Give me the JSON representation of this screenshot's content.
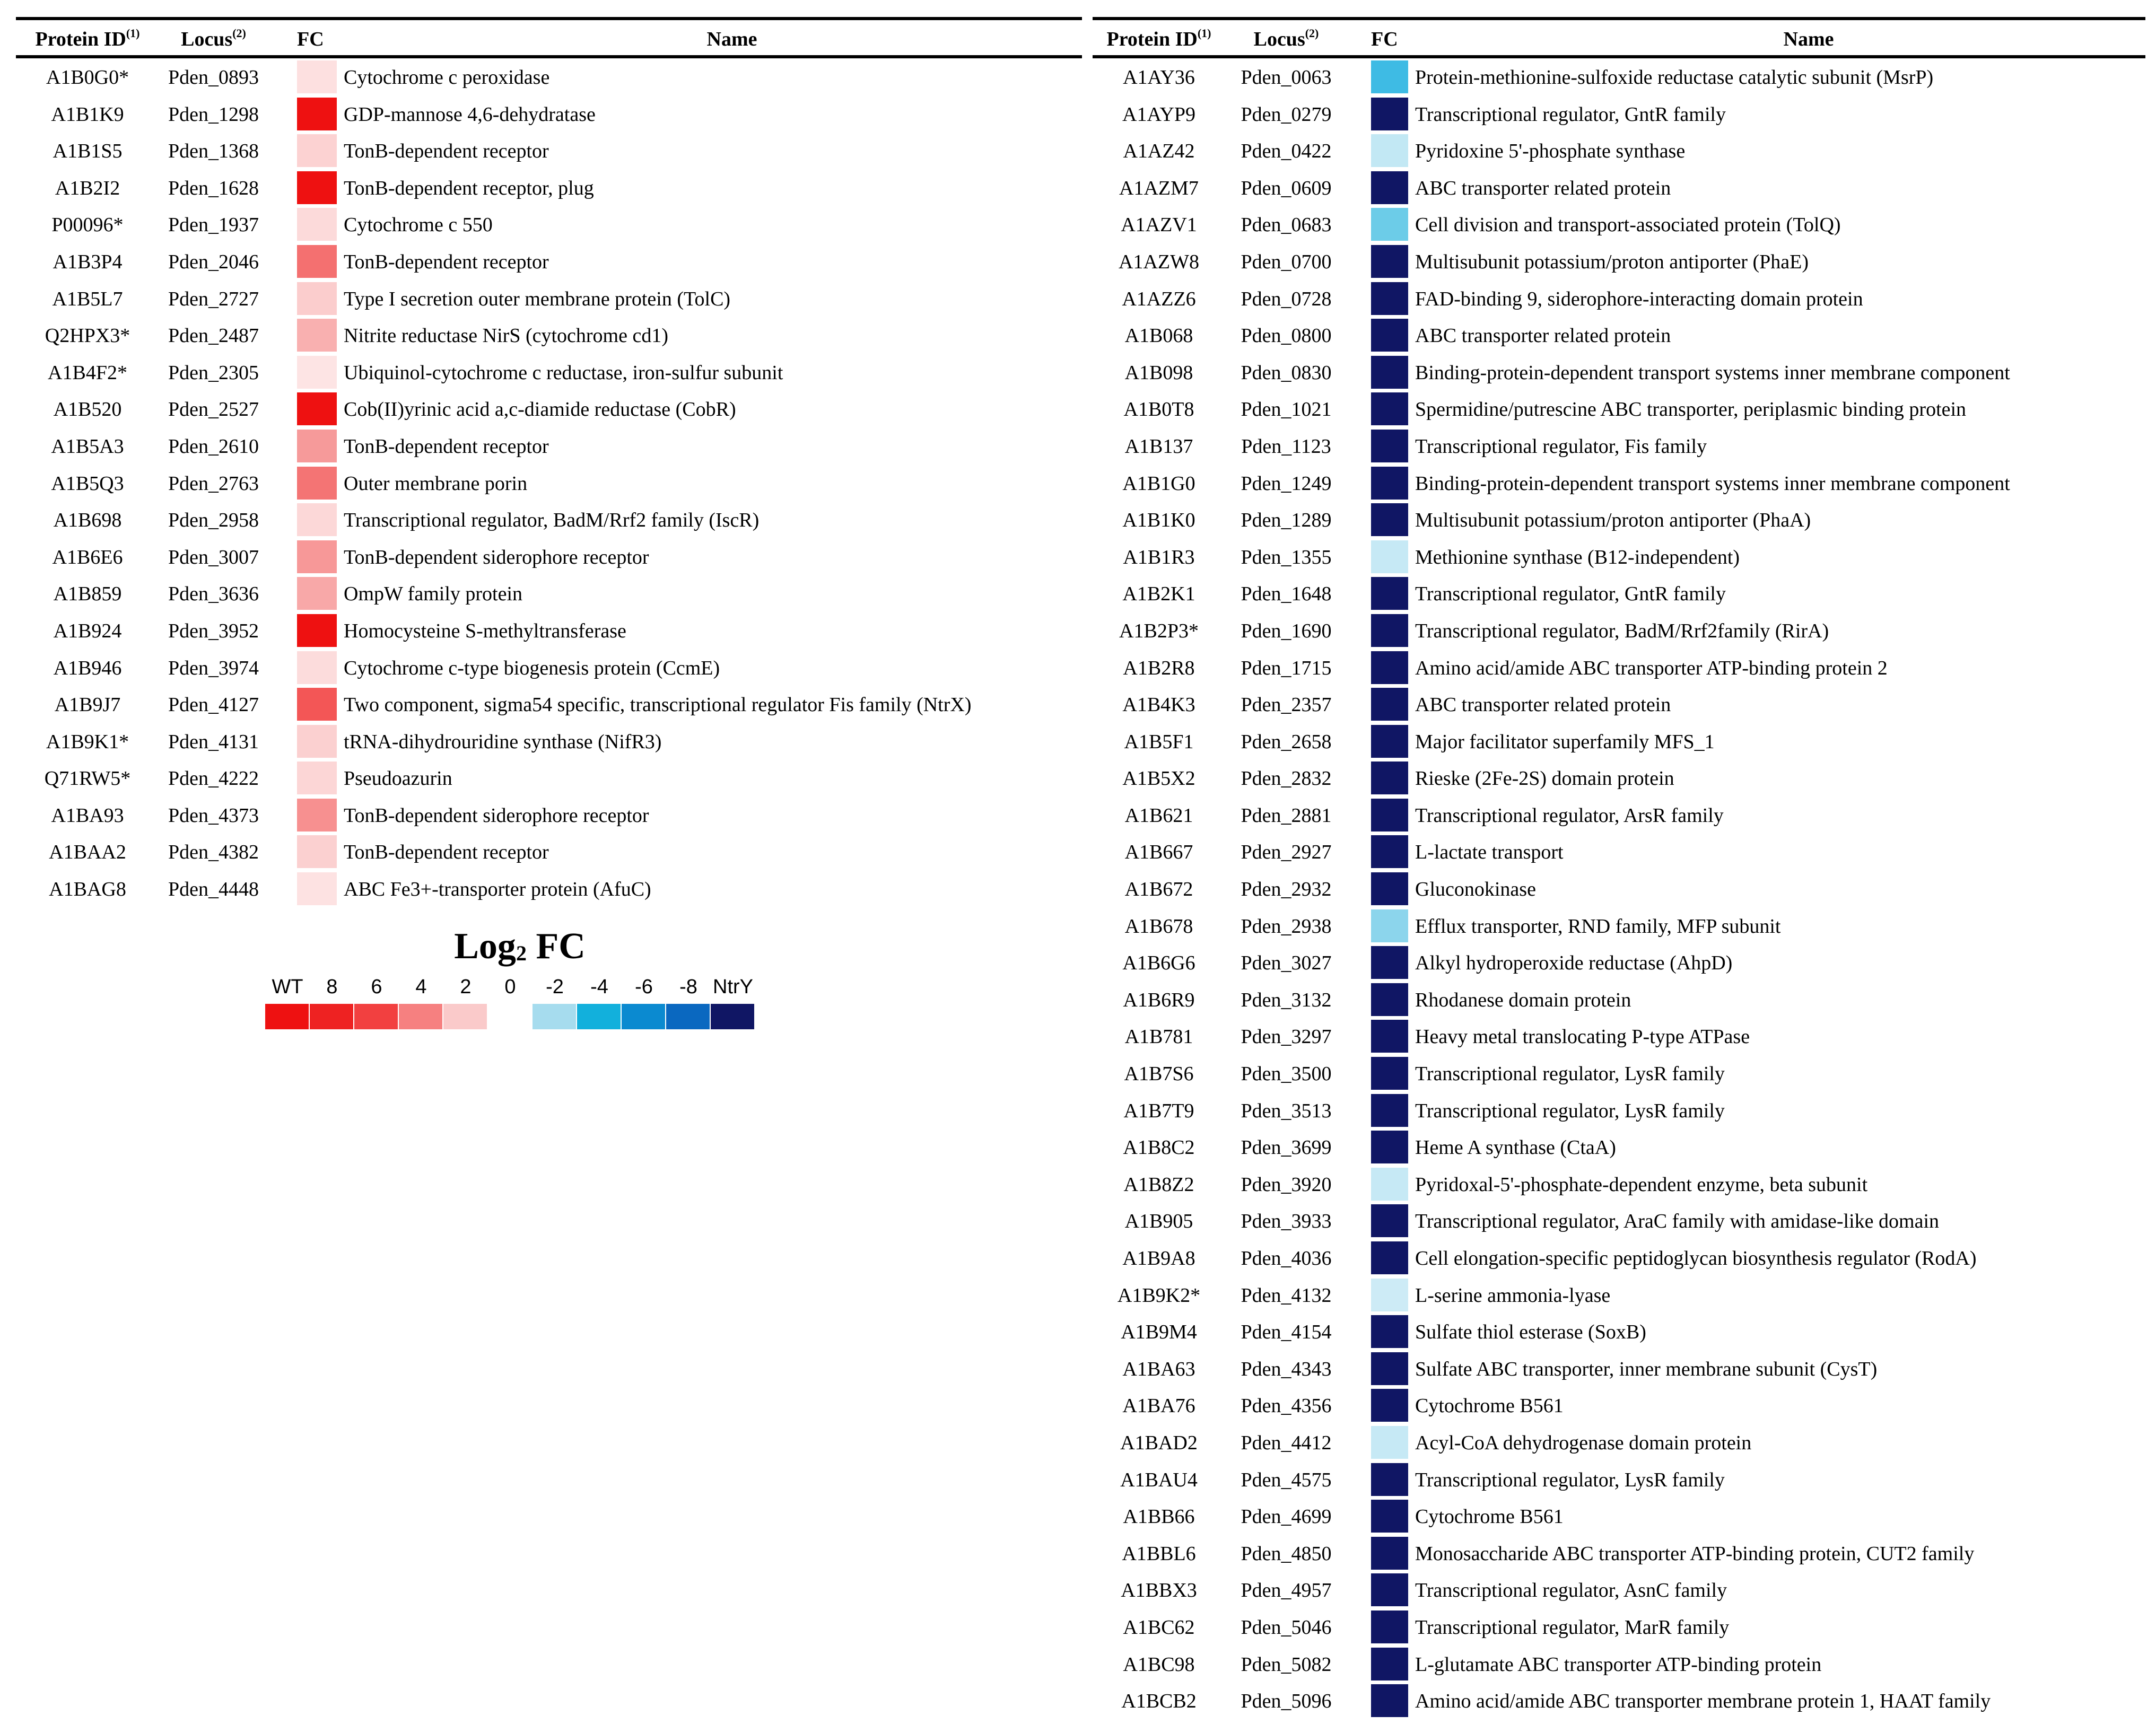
{
  "legend": {
    "title_main": "Log",
    "title_sub": "2",
    "title_tail": " FC",
    "items": [
      {
        "label": "WT",
        "color": "#ee1111"
      },
      {
        "label": "8",
        "color": "#ee2222"
      },
      {
        "label": "6",
        "color": "#f24040"
      },
      {
        "label": "4",
        "color": "#f68080"
      },
      {
        "label": "2",
        "color": "#facaca"
      },
      {
        "label": "0",
        "color": "#ffffff"
      },
      {
        "label": "-2",
        "color": "#a6dcee"
      },
      {
        "label": "-4",
        "color": "#12b0dc"
      },
      {
        "label": "-6",
        "color": "#0b8ad0"
      },
      {
        "label": "-8",
        "color": "#0a68c0"
      },
      {
        "label": "NtrY",
        "color": "#101664"
      }
    ]
  },
  "left": {
    "headers": {
      "id": "Protein ID",
      "id_sup": "(1)",
      "locus": "Locus",
      "locus_sup": "(2)",
      "fc": "FC",
      "name": "Name"
    },
    "rows": [
      {
        "id": "A1B0G0*",
        "locus": "Pden_0893",
        "color": "#fde0e0",
        "name": "Cytochrome c peroxidase"
      },
      {
        "id": "A1B1K9",
        "locus": "Pden_1298",
        "color": "#ee1111",
        "name": "GDP-mannose 4,6-dehydratase"
      },
      {
        "id": "A1B1S5",
        "locus": "Pden_1368",
        "color": "#fcd2d2",
        "name": "TonB-dependent receptor"
      },
      {
        "id": "A1B2I2",
        "locus": "Pden_1628",
        "color": "#ee1111",
        "name": "TonB-dependent receptor, plug"
      },
      {
        "id": "P00096*",
        "locus": "Pden_1937",
        "color": "#fcdada",
        "name": "Cytochrome c 550"
      },
      {
        "id": "A1B3P4",
        "locus": "Pden_2046",
        "color": "#f47070",
        "name": "TonB-dependent receptor"
      },
      {
        "id": "A1B5L7",
        "locus": "Pden_2727",
        "color": "#fbcdcd",
        "name": "Type I secretion outer membrane protein (TolC)"
      },
      {
        "id": "Q2HPX3*",
        "locus": "Pden_2487",
        "color": "#f9b0b0",
        "name": "Nitrite reductase NirS (cytochrome cd1)"
      },
      {
        "id": "A1B4F2*",
        "locus": "Pden_2305",
        "color": "#fde4e4",
        "name": "Ubiquinol-cytochrome c reductase, iron-sulfur subunit"
      },
      {
        "id": "A1B520",
        "locus": "Pden_2527",
        "color": "#ee1111",
        "name": "Cob(II)yrinic acid a,c-diamide reductase (CobR)"
      },
      {
        "id": "A1B5A3",
        "locus": "Pden_2610",
        "color": "#f69a9a",
        "name": "TonB-dependent receptor"
      },
      {
        "id": "A1B5Q3",
        "locus": "Pden_2763",
        "color": "#f47474",
        "name": "Outer membrane porin"
      },
      {
        "id": "A1B698",
        "locus": "Pden_2958",
        "color": "#fcd8d8",
        "name": "Transcriptional regulator, BadM/Rrf2 family (IscR)"
      },
      {
        "id": "A1B6E6",
        "locus": "Pden_3007",
        "color": "#f79898",
        "name": "TonB-dependent siderophore receptor"
      },
      {
        "id": "A1B859",
        "locus": "Pden_3636",
        "color": "#f8a8a8",
        "name": "OmpW family protein"
      },
      {
        "id": "A1B924",
        "locus": "Pden_3952",
        "color": "#ee1111",
        "name": "Homocysteine S-methyltransferase"
      },
      {
        "id": "A1B946",
        "locus": "Pden_3974",
        "color": "#fcdcdc",
        "name": "Cytochrome c-type biogenesis protein (CcmE)"
      },
      {
        "id": "A1B9J7",
        "locus": "Pden_4127",
        "color": "#f35656",
        "name": "Two component, sigma54 specific, transcriptional regulator Fis family (NtrX)"
      },
      {
        "id": "A1B9K1*",
        "locus": "Pden_4131",
        "color": "#fbd0d0",
        "name": "tRNA-dihydrouridine synthase (NifR3)"
      },
      {
        "id": "Q71RW5*",
        "locus": "Pden_4222",
        "color": "#fcd6d6",
        "name": "Pseudoazurin"
      },
      {
        "id": "A1BA93",
        "locus": "Pden_4373",
        "color": "#f79090",
        "name": "TonB-dependent siderophore receptor"
      },
      {
        "id": "A1BAA2",
        "locus": "Pden_4382",
        "color": "#fbd0d0",
        "name": "TonB-dependent receptor"
      },
      {
        "id": "A1BAG8",
        "locus": "Pden_4448",
        "color": "#fde2e2",
        "name": "ABC Fe3+-transporter protein (AfuC)"
      }
    ]
  },
  "right": {
    "headers": {
      "id": "Protein ID",
      "id_sup": "(1)",
      "locus": "Locus",
      "locus_sup": "(2)",
      "fc": "FC",
      "name": "Name"
    },
    "rows": [
      {
        "id": "A1AY36",
        "locus": "Pden_0063",
        "color": "#3ebbe4",
        "name": "Protein-methionine-sulfoxide reductase catalytic subunit (MsrP)"
      },
      {
        "id": "A1AYP9",
        "locus": "Pden_0279",
        "color": "#101664",
        "name": "Transcriptional regulator, GntR family"
      },
      {
        "id": "A1AZ42",
        "locus": "Pden_0422",
        "color": "#c2e8f4",
        "name": "Pyridoxine 5'-phosphate synthase"
      },
      {
        "id": "A1AZM7",
        "locus": "Pden_0609",
        "color": "#101664",
        "name": "ABC transporter related protein"
      },
      {
        "id": "A1AZV1",
        "locus": "Pden_0683",
        "color": "#6ccce8",
        "name": "Cell division and transport-associated protein (TolQ)"
      },
      {
        "id": "A1AZW8",
        "locus": "Pden_0700",
        "color": "#101664",
        "name": "Multisubunit potassium/proton antiporter (PhaE)"
      },
      {
        "id": "A1AZZ6",
        "locus": "Pden_0728",
        "color": "#101664",
        "name": "FAD-binding 9, siderophore-interacting domain protein"
      },
      {
        "id": "A1B068",
        "locus": "Pden_0800",
        "color": "#101664",
        "name": "ABC transporter related protein"
      },
      {
        "id": "A1B098",
        "locus": "Pden_0830",
        "color": "#101664",
        "name": "Binding-protein-dependent transport systems inner membrane component"
      },
      {
        "id": "A1B0T8",
        "locus": "Pden_1021",
        "color": "#101664",
        "name": "Spermidine/putrescine ABC transporter, periplasmic binding protein"
      },
      {
        "id": "A1B137",
        "locus": "Pden_1123",
        "color": "#101664",
        "name": "Transcriptional regulator, Fis family"
      },
      {
        "id": "A1B1G0",
        "locus": "Pden_1249",
        "color": "#101664",
        "name": "Binding-protein-dependent transport systems inner membrane component"
      },
      {
        "id": "A1B1K0",
        "locus": "Pden_1289",
        "color": "#101664",
        "name": "Multisubunit potassium/proton antiporter (PhaA)"
      },
      {
        "id": "A1B1R3",
        "locus": "Pden_1355",
        "color": "#c6e9f5",
        "name": "Methionine synthase (B12-independent)"
      },
      {
        "id": "A1B2K1",
        "locus": "Pden_1648",
        "color": "#101664",
        "name": "Transcriptional regulator, GntR family"
      },
      {
        "id": "A1B2P3*",
        "locus": "Pden_1690",
        "color": "#101664",
        "name": "Transcriptional regulator, BadM/Rrf2family (RirA)"
      },
      {
        "id": "A1B2R8",
        "locus": "Pden_1715",
        "color": "#101664",
        "name": "Amino acid/amide ABC transporter ATP-binding protein 2"
      },
      {
        "id": "A1B4K3",
        "locus": "Pden_2357",
        "color": "#101664",
        "name": "ABC transporter related protein"
      },
      {
        "id": "A1B5F1",
        "locus": "Pden_2658",
        "color": "#101664",
        "name": "Major facilitator superfamily MFS_1"
      },
      {
        "id": "A1B5X2",
        "locus": "Pden_2832",
        "color": "#101664",
        "name": "Rieske (2Fe-2S) domain protein"
      },
      {
        "id": "A1B621",
        "locus": "Pden_2881",
        "color": "#101664",
        "name": "Transcriptional regulator, ArsR family"
      },
      {
        "id": "A1B667",
        "locus": "Pden_2927",
        "color": "#101664",
        "name": "L-lactate transport"
      },
      {
        "id": "A1B672",
        "locus": "Pden_2932",
        "color": "#101664",
        "name": "Gluconokinase"
      },
      {
        "id": "A1B678",
        "locus": "Pden_2938",
        "color": "#8cd5ec",
        "name": "Efflux transporter, RND family, MFP subunit"
      },
      {
        "id": "A1B6G6",
        "locus": "Pden_3027",
        "color": "#101664",
        "name": "Alkyl hydroperoxide reductase (AhpD)"
      },
      {
        "id": "A1B6R9",
        "locus": "Pden_3132",
        "color": "#101664",
        "name": "Rhodanese domain protein"
      },
      {
        "id": "A1B781",
        "locus": "Pden_3297",
        "color": "#101664",
        "name": "Heavy metal translocating P-type ATPase"
      },
      {
        "id": "A1B7S6",
        "locus": "Pden_3500",
        "color": "#101664",
        "name": "Transcriptional regulator, LysR family"
      },
      {
        "id": "A1B7T9",
        "locus": "Pden_3513",
        "color": "#101664",
        "name": "Transcriptional regulator, LysR family"
      },
      {
        "id": "A1B8C2",
        "locus": "Pden_3699",
        "color": "#101664",
        "name": "Heme A synthase (CtaA)"
      },
      {
        "id": "A1B8Z2",
        "locus": "Pden_3920",
        "color": "#c6e9f5",
        "name": "Pyridoxal-5'-phosphate-dependent enzyme, beta subunit"
      },
      {
        "id": "A1B905",
        "locus": "Pden_3933",
        "color": "#101664",
        "name": "Transcriptional regulator, AraC family with amidase-like domain"
      },
      {
        "id": "A1B9A8",
        "locus": "Pden_4036",
        "color": "#101664",
        "name": "Cell elongation-specific peptidoglycan biosynthesis regulator (RodA)"
      },
      {
        "id": "A1B9K2*",
        "locus": "Pden_4132",
        "color": "#cdebf6",
        "name": "L-serine ammonia-lyase"
      },
      {
        "id": "A1B9M4",
        "locus": "Pden_4154",
        "color": "#101664",
        "name": "Sulfate thiol esterase (SoxB)"
      },
      {
        "id": "A1BA63",
        "locus": "Pden_4343",
        "color": "#101664",
        "name": "Sulfate ABC transporter, inner membrane subunit (CysT)"
      },
      {
        "id": "A1BA76",
        "locus": "Pden_4356",
        "color": "#101664",
        "name": "Cytochrome B561"
      },
      {
        "id": "A1BAD2",
        "locus": "Pden_4412",
        "color": "#c6e9f5",
        "name": "Acyl-CoA dehydrogenase domain protein"
      },
      {
        "id": "A1BAU4",
        "locus": "Pden_4575",
        "color": "#101664",
        "name": "Transcriptional regulator, LysR family"
      },
      {
        "id": "A1BB66",
        "locus": "Pden_4699",
        "color": "#101664",
        "name": "Cytochrome B561"
      },
      {
        "id": "A1BBL6",
        "locus": "Pden_4850",
        "color": "#101664",
        "name": "Monosaccharide ABC transporter ATP-binding protein, CUT2 family"
      },
      {
        "id": "A1BBX3",
        "locus": "Pden_4957",
        "color": "#101664",
        "name": "Transcriptional regulator, AsnC family"
      },
      {
        "id": "A1BC62",
        "locus": "Pden_5046",
        "color": "#101664",
        "name": "Transcriptional regulator, MarR family"
      },
      {
        "id": "A1BC98",
        "locus": "Pden_5082",
        "color": "#101664",
        "name": "L-glutamate ABC transporter ATP-binding protein"
      },
      {
        "id": "A1BCB2",
        "locus": "Pden_5096",
        "color": "#101664",
        "name": "Amino acid/amide ABC transporter membrane protein 1, HAAT family"
      }
    ]
  }
}
